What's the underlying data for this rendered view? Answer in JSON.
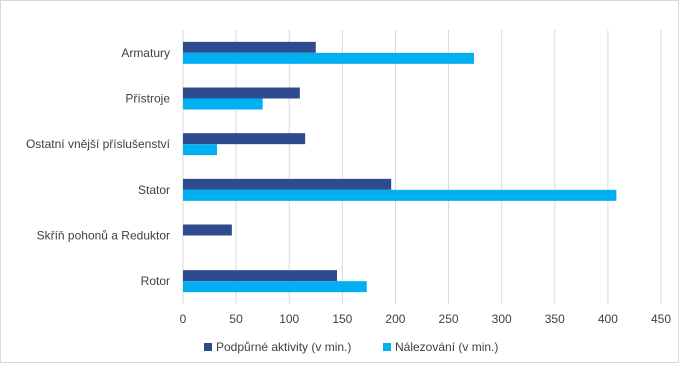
{
  "chart_data": {
    "type": "bar",
    "orientation": "horizontal",
    "categories": [
      "Armatury",
      "Přístroje",
      "Ostatní vnější příslušenství",
      "Stator",
      "Skříň pohonů a Reduktor",
      "Rotor"
    ],
    "series": [
      {
        "name": "Podpůrné aktivity (v min.)",
        "color": "#2f4b8f",
        "values": [
          125,
          110,
          115,
          196,
          46,
          145
        ]
      },
      {
        "name": "Nálezování (v min.)",
        "color": "#00b0f0",
        "values": [
          274,
          75,
          32,
          408,
          0,
          173
        ]
      }
    ],
    "x_ticks": [
      "0",
      "50",
      "100",
      "150",
      "200",
      "250",
      "300",
      "350",
      "400",
      "450"
    ],
    "xlim": [
      0,
      450
    ],
    "grid": "vertical",
    "legend_position": "bottom"
  }
}
